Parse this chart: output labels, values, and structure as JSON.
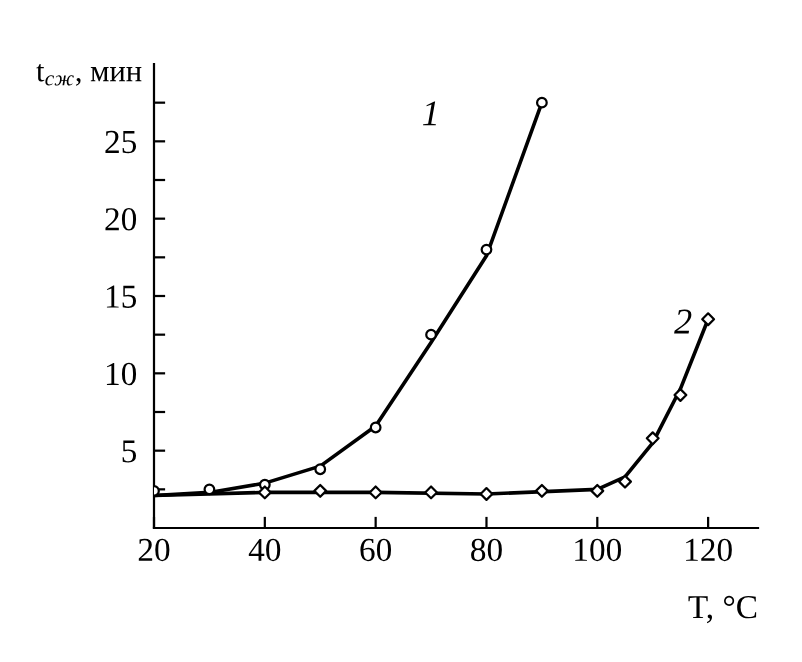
{
  "chart_data": {
    "type": "line",
    "xlabel": "T, °C",
    "ylabel": "t$_{сж}$, мин",
    "xlim": [
      20,
      129
    ],
    "xticks": [
      20,
      40,
      60,
      80,
      100,
      120
    ],
    "ylim": [
      0,
      30
    ],
    "yticks": [
      {
        "value": 2.5,
        "label": null
      },
      5,
      {
        "value": 7.5,
        "label": null
      },
      10,
      {
        "value": 12.5,
        "label": null
      },
      15,
      {
        "value": 17.5,
        "label": null
      },
      20,
      {
        "value": 22.5,
        "label": null
      },
      25,
      {
        "value": 27.5,
        "label": null
      }
    ],
    "grid": false,
    "legend": false,
    "series": [
      {
        "type": "scatter",
        "marker": "circle",
        "color": "#000000",
        "x": [
          20,
          30,
          40,
          50,
          60,
          70,
          80,
          90
        ],
        "values": [
          2.4,
          2.5,
          2.8,
          3.8,
          6.5,
          12.5,
          18,
          27.5
        ]
      },
      {
        "type": "scatter",
        "marker": "diamond",
        "color": "#000000",
        "x": [
          40,
          50,
          60,
          70,
          80,
          90,
          100,
          105,
          110,
          115,
          120
        ],
        "values": [
          2.3,
          2.4,
          2.3,
          2.3,
          2.2,
          2.4,
          2.4,
          3,
          5.8,
          8.6,
          13.5
        ]
      },
      {
        "marker": "none",
        "line_style": "solid",
        "color": "#000000",
        "x": [
          20,
          30,
          40,
          50,
          60,
          70,
          80,
          90
        ],
        "values": [
          2.1,
          2.3,
          2.9,
          4.0,
          6.6,
          12,
          17.6,
          27.5
        ]
      },
      {
        "marker": "none",
        "line_style": "solid",
        "color": "#000000",
        "x": [
          20,
          40,
          60,
          80,
          100,
          105,
          110,
          115,
          120
        ],
        "values": [
          2.1,
          2.3,
          2.3,
          2.2,
          2.5,
          3.3,
          5.5,
          9,
          13.5
        ]
      }
    ],
    "annotations": [
      {
        "text": "1",
        "x": 90,
        "y": 27.5
      },
      {
        "text": "2",
        "x": 120,
        "y": 13.5
      }
    ]
  }
}
